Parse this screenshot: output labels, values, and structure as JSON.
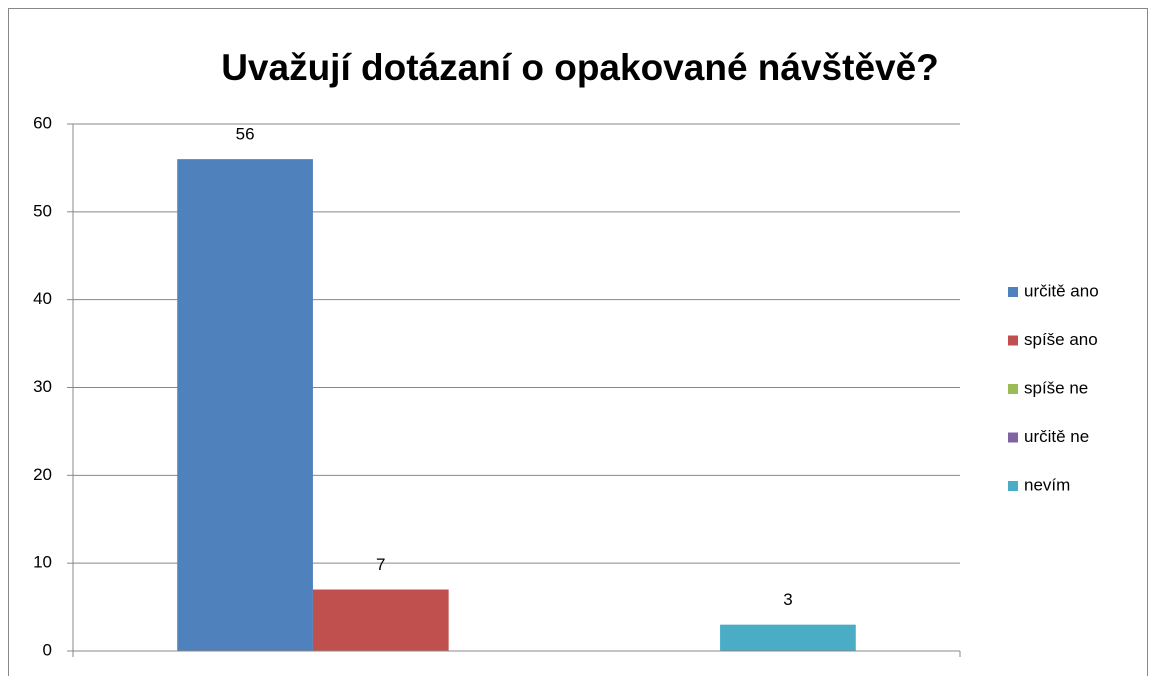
{
  "chart_data": {
    "type": "bar",
    "title": "Uvažují dotázaní o opakované návštěvě?",
    "categories": [
      null
    ],
    "series": [
      {
        "name": "určitě ano",
        "color": "#4f81bd",
        "values": [
          56
        ]
      },
      {
        "name": "spíše ano",
        "color": "#c0504d",
        "values": [
          7
        ]
      },
      {
        "name": "spíše ne",
        "color": "#9bbb59",
        "values": [
          null
        ]
      },
      {
        "name": "určitě ne",
        "color": "#8064a2",
        "values": [
          null
        ]
      },
      {
        "name": "nevím",
        "color": "#4bacc6",
        "values": [
          3
        ]
      }
    ],
    "ylim": [
      0,
      60
    ],
    "yticks": [
      0,
      10,
      20,
      30,
      40,
      50,
      60
    ],
    "grid": true,
    "legend": "right"
  }
}
